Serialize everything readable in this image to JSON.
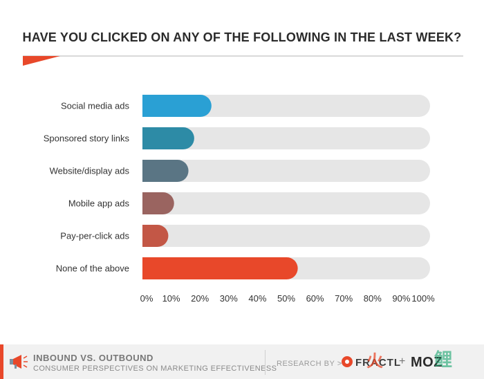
{
  "title": "HAVE YOU CLICKED ON ANY OF THE FOLLOWING IN THE LAST WEEK?",
  "chart_data": {
    "type": "bar",
    "orientation": "horizontal",
    "categories": [
      "Social media ads",
      "Sponsored story links",
      "Website/display ads",
      "Mobile app ads",
      "Pay-per-click ads",
      "None of the above"
    ],
    "values": [
      24,
      18,
      16,
      11,
      9,
      54
    ],
    "colors": [
      "#2aa0d4",
      "#2d8ba6",
      "#5a7584",
      "#9a6460",
      "#c35746",
      "#e8482a"
    ],
    "track_color": "#e6e6e6",
    "xlim": [
      0,
      100
    ],
    "xticks": [
      "0%",
      "10%",
      "20%",
      "30%",
      "40%",
      "50%",
      "60%",
      "70%",
      "80%",
      "90%",
      "100%"
    ],
    "grid": false
  },
  "footer": {
    "title": "INBOUND VS. OUTBOUND",
    "subtitle": "CONSUMER PERSPECTIVES ON MARKETING EFFECTIVENESS",
    "research_by": "RESEARCH BY >",
    "brand1": "FRACTL",
    "plus": "+",
    "brand2": "MOZ",
    "watermark1": "火",
    "watermark2": "鲤"
  }
}
